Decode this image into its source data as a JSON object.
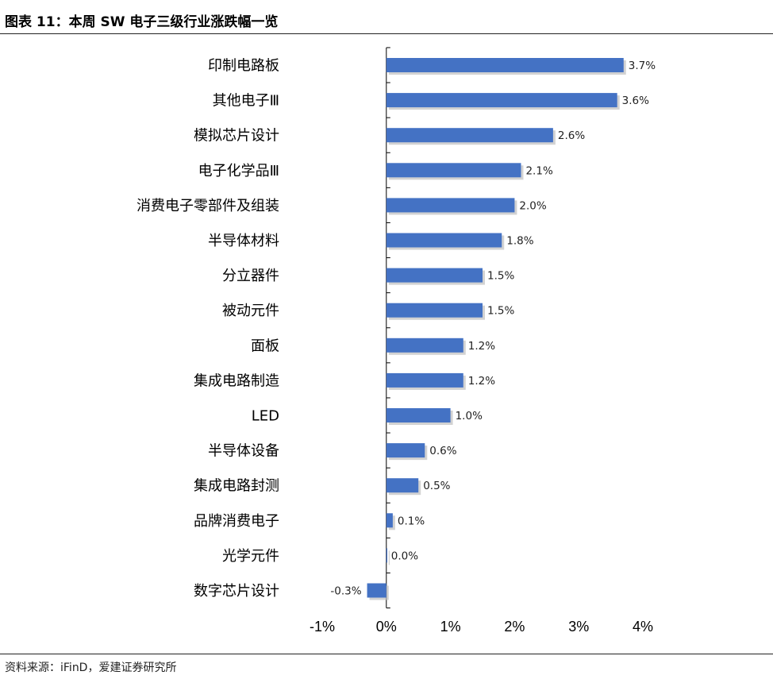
{
  "header": {
    "title": "图表 11：本周 SW 电子三级行业涨跌幅一览"
  },
  "footer": {
    "source": "资料来源：iFinD，爱建证券研究所"
  },
  "colors": {
    "bar": "#4472C4",
    "axis": "#000000",
    "shadow": "#bfbfbf"
  },
  "chart_data": {
    "type": "bar",
    "orientation": "horizontal",
    "title": "",
    "xlabel": "",
    "ylabel": "",
    "xlim": [
      -1,
      4
    ],
    "x_ticks": [
      -1,
      0,
      1,
      2,
      3,
      4
    ],
    "x_tick_labels": [
      "-1%",
      "0%",
      "1%",
      "2%",
      "3%",
      "4%"
    ],
    "grid": false,
    "legend": "none",
    "categories": [
      "印制电路板",
      "其他电子Ⅲ",
      "模拟芯片设计",
      "电子化学品Ⅲ",
      "消费电子零部件及组装",
      "半导体材料",
      "分立器件",
      "被动元件",
      "面板",
      "集成电路制造",
      "LED",
      "半导体设备",
      "集成电路封测",
      "品牌消费电子",
      "光学元件",
      "数字芯片设计"
    ],
    "values": [
      3.7,
      3.6,
      2.6,
      2.1,
      2.0,
      1.8,
      1.5,
      1.5,
      1.2,
      1.2,
      1.0,
      0.6,
      0.5,
      0.1,
      0.0,
      -0.3
    ],
    "value_labels": [
      "3.7%",
      "3.6%",
      "2.6%",
      "2.1%",
      "2.0%",
      "1.8%",
      "1.5%",
      "1.5%",
      "1.2%",
      "1.2%",
      "1.0%",
      "0.6%",
      "0.5%",
      "0.1%",
      "0.0%",
      "-0.3%"
    ]
  }
}
